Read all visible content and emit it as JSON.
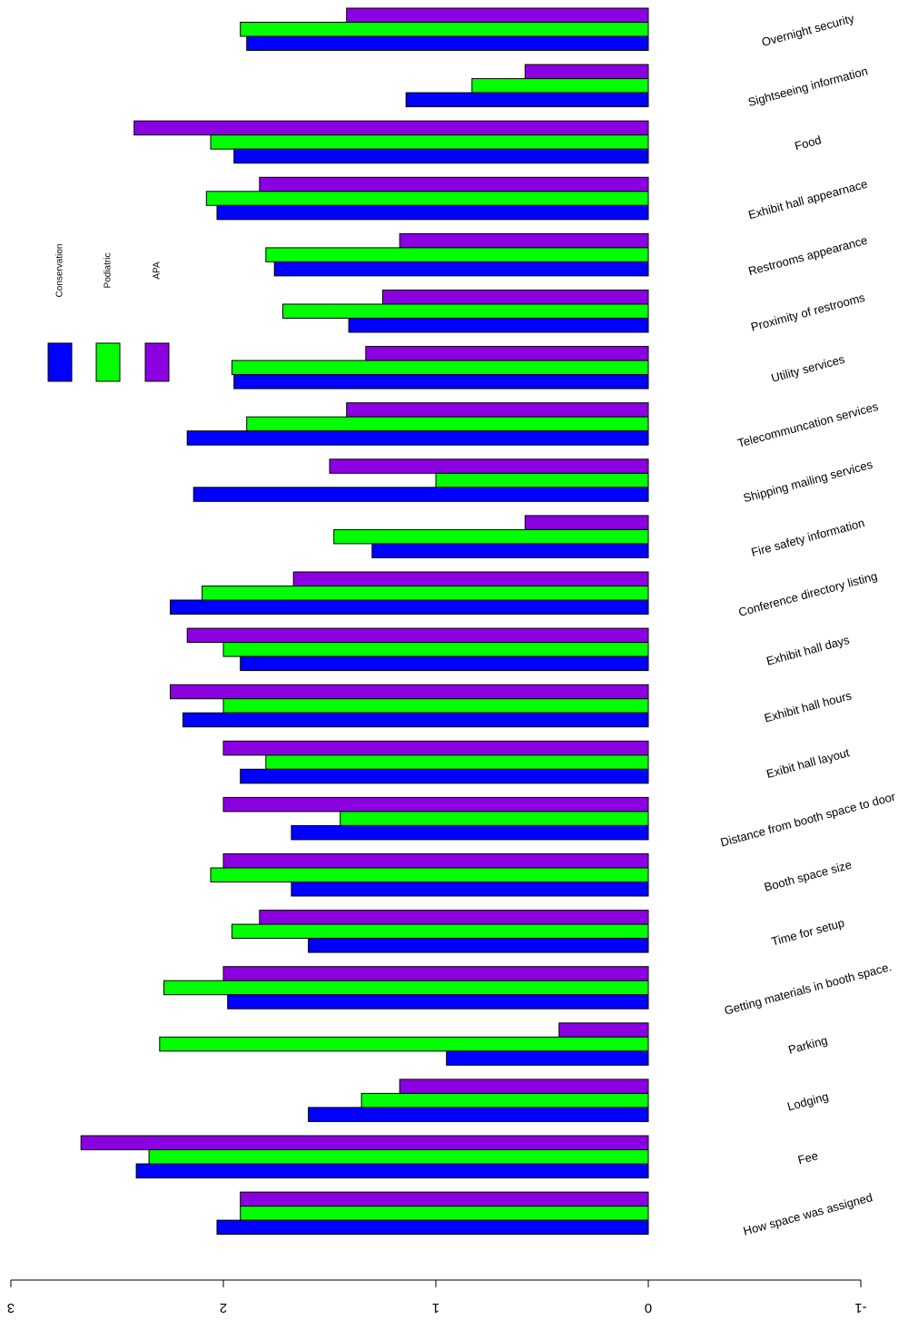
{
  "chart_data": {
    "type": "bar",
    "orientation": "horizontal",
    "x_axis_reversed": true,
    "text_rotated_degrees": 180,
    "xlim": [
      3,
      -1
    ],
    "x_ticks": [
      3,
      2,
      1,
      0,
      -1
    ],
    "x_tick_labels": [
      "3",
      "2",
      "1",
      "0",
      "-1"
    ],
    "title": "",
    "xlabel": "",
    "ylabel": "",
    "categories": [
      "Overnight security",
      "Sightseeing information",
      "Food",
      "Exhibit hall appearnace",
      "Restrooms appearance",
      "Proximity of restrooms",
      "Utility services",
      "Telecommuncation services",
      "Shipping mailing services",
      "Fire safety information",
      "Conference directory listing",
      "Exhibit hall days",
      "Exhibit hall hours",
      "Exibit hall layout",
      "Distance from booth space to door",
      "Booth space size",
      "Time for setup",
      "Getting materials in booth space.",
      "Parking",
      "Lodging",
      "Fee",
      "How space was assigned"
    ],
    "series": [
      {
        "name": "APA",
        "color": "#8B00E0",
        "values": [
          1.42,
          0.58,
          2.42,
          1.83,
          1.17,
          1.25,
          1.33,
          1.42,
          1.5,
          0.58,
          1.67,
          2.17,
          2.25,
          2.0,
          2.0,
          2.0,
          1.83,
          2.0,
          0.42,
          1.17,
          2.67,
          1.92
        ]
      },
      {
        "name": "Podiatric",
        "color": "#00FF00",
        "values": [
          1.92,
          0.83,
          2.06,
          2.08,
          1.8,
          1.72,
          1.96,
          1.89,
          1.0,
          1.48,
          2.1,
          2.0,
          2.0,
          1.8,
          1.45,
          2.06,
          1.96,
          2.28,
          2.3,
          1.35,
          2.35,
          1.92
        ]
      },
      {
        "name": "Conservation",
        "color": "#0000FF",
        "values": [
          1.89,
          1.14,
          1.95,
          2.03,
          1.76,
          1.41,
          1.95,
          2.17,
          2.14,
          1.3,
          2.25,
          1.92,
          2.19,
          1.92,
          1.68,
          1.68,
          1.6,
          1.98,
          0.95,
          1.6,
          2.41,
          2.03
        ]
      }
    ],
    "legend": {
      "placement": "upper-left",
      "entries": [
        "Conservation",
        "Podiatric",
        "APA"
      ],
      "colors": [
        "#0000FF",
        "#00FF00",
        "#8B00E0"
      ]
    },
    "grid": false
  }
}
